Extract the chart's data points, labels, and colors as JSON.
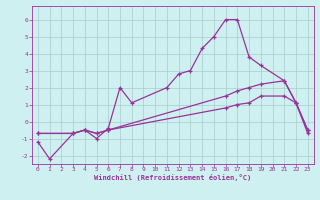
{
  "xlabel": "Windchill (Refroidissement éolien,°C)",
  "background_color": "#cff0f0",
  "line_color": "#993399",
  "grid_color": "#aacccc",
  "xlim": [
    -0.5,
    23.5
  ],
  "ylim": [
    -2.5,
    6.8
  ],
  "xticks": [
    0,
    1,
    2,
    3,
    4,
    5,
    6,
    7,
    8,
    9,
    10,
    11,
    12,
    13,
    14,
    15,
    16,
    17,
    18,
    19,
    20,
    21,
    22,
    23
  ],
  "yticks": [
    -2,
    -1,
    0,
    1,
    2,
    3,
    4,
    5,
    6
  ],
  "s1_x": [
    0,
    1,
    3,
    4,
    5,
    6,
    7,
    8,
    11,
    12,
    13,
    14,
    15,
    16,
    17,
    18,
    19,
    21,
    22,
    23
  ],
  "s1_y": [
    -1.2,
    -2.2,
    -0.7,
    -0.5,
    -1.0,
    -0.4,
    2.0,
    1.1,
    2.0,
    2.8,
    3.0,
    4.3,
    5.0,
    6.0,
    6.0,
    3.8,
    3.3,
    2.4,
    1.1,
    -0.5
  ],
  "s2_x": [
    0,
    3,
    4,
    5,
    6,
    16,
    17,
    18,
    19,
    21,
    22,
    23
  ],
  "s2_y": [
    -0.7,
    -0.7,
    -0.5,
    -0.7,
    -0.5,
    1.5,
    1.8,
    2.0,
    2.2,
    2.4,
    1.1,
    -0.5
  ],
  "s3_x": [
    0,
    3,
    4,
    5,
    6,
    16,
    17,
    18,
    19,
    21,
    22,
    23
  ],
  "s3_y": [
    -0.7,
    -0.7,
    -0.5,
    -0.7,
    -0.5,
    0.8,
    1.0,
    1.1,
    1.5,
    1.5,
    1.1,
    -0.7
  ]
}
